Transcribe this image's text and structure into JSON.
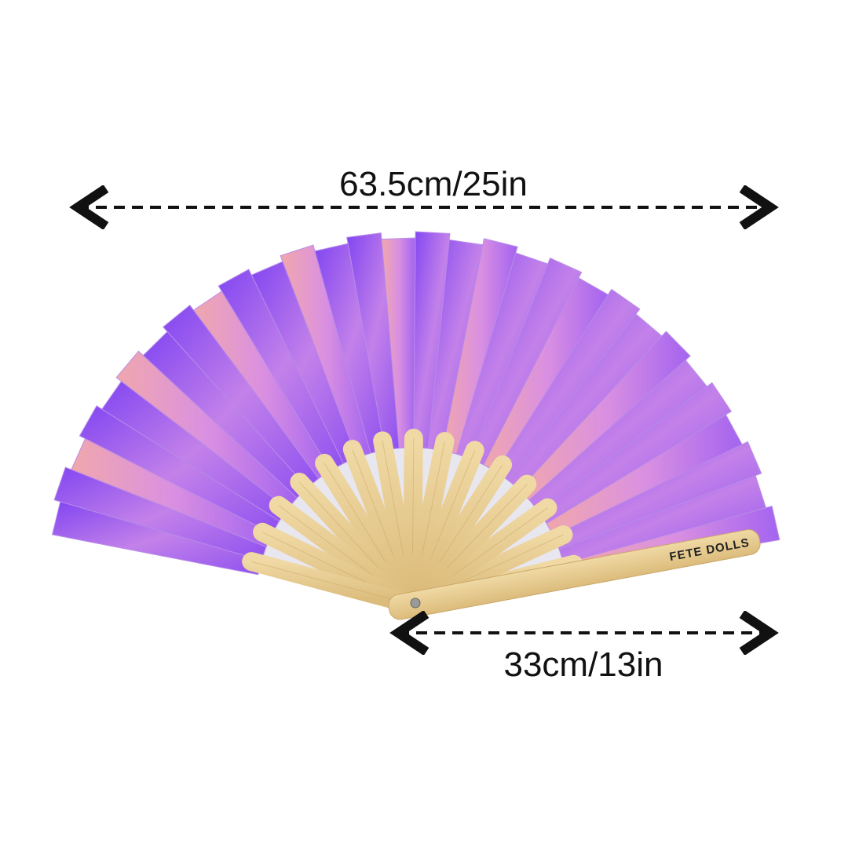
{
  "width_label": "63.5cm/25in",
  "handle_label": "33cm/13in",
  "brand": "FETE DOLLS"
}
